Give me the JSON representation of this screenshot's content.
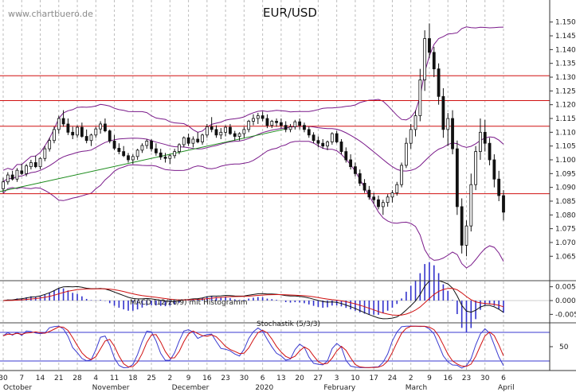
{
  "header": {
    "site": "www.chartbuero.de"
  },
  "chart_data": [
    {
      "type": "candlestick",
      "title": "EUR/USD",
      "ylim": [
        1.057,
        1.158
      ],
      "y_ticks": [
        "1.065",
        "1.070",
        "1.075",
        "1.080",
        "1.085",
        "1.090",
        "1.095",
        "1.100",
        "1.105",
        "1.110",
        "1.115",
        "1.120",
        "1.125",
        "1.130",
        "1.135",
        "1.140",
        "1.145",
        "1.150"
      ],
      "x_day_ticks": [
        "30",
        "7",
        "14",
        "21",
        "28",
        "4",
        "11",
        "18",
        "25",
        "2",
        "9",
        "16",
        "23",
        "30",
        "6",
        "13",
        "20",
        "27",
        "3",
        "10",
        "17",
        "24",
        "2",
        "9",
        "16",
        "23",
        "30",
        "6"
      ],
      "x_month_labels": [
        "October",
        "November",
        "December",
        "2020",
        "February",
        "March",
        "April"
      ],
      "horizontal_levels": [
        1.0877,
        1.1122,
        1.1215,
        1.1305
      ],
      "trendline": {
        "from": 1.0885,
        "to": 1.1112,
        "color": "#1a8a1a"
      },
      "candles": [
        [
          1.0895,
          1.0935,
          1.088,
          1.092
        ],
        [
          1.092,
          1.0955,
          1.091,
          1.0945
        ],
        [
          1.0945,
          1.096,
          1.0925,
          1.093
        ],
        [
          1.093,
          1.097,
          1.092,
          1.0962
        ],
        [
          1.096,
          1.0985,
          1.0945,
          1.095
        ],
        [
          1.095,
          1.0985,
          1.094,
          1.0978
        ],
        [
          1.0975,
          1.1,
          1.0965,
          1.099
        ],
        [
          1.099,
          1.1015,
          1.097,
          1.0975
        ],
        [
          1.0975,
          1.101,
          1.0965,
          1.1005
        ],
        [
          1.1005,
          1.105,
          1.0995,
          1.104
        ],
        [
          1.104,
          1.108,
          1.103,
          1.107
        ],
        [
          1.107,
          1.112,
          1.106,
          1.111
        ],
        [
          1.111,
          1.116,
          1.1095,
          1.115
        ],
        [
          1.115,
          1.118,
          1.112,
          1.113
        ],
        [
          1.113,
          1.115,
          1.109,
          1.11
        ],
        [
          1.11,
          1.112,
          1.1075,
          1.109
        ],
        [
          1.109,
          1.1125,
          1.108,
          1.1118
        ],
        [
          1.1118,
          1.1135,
          1.108,
          1.1085
        ],
        [
          1.1085,
          1.111,
          1.106,
          1.107
        ],
        [
          1.107,
          1.1095,
          1.105,
          1.109
        ],
        [
          1.109,
          1.112,
          1.108,
          1.1112
        ],
        [
          1.1112,
          1.114,
          1.1095,
          1.113
        ],
        [
          1.113,
          1.115,
          1.11,
          1.1105
        ],
        [
          1.1105,
          1.111,
          1.106,
          1.1068
        ],
        [
          1.1068,
          1.109,
          1.1035,
          1.1042
        ],
        [
          1.1042,
          1.106,
          1.102,
          1.103
        ],
        [
          1.103,
          1.105,
          1.101,
          1.1015
        ],
        [
          1.1015,
          1.1025,
          1.099,
          1.1
        ],
        [
          1.1,
          1.102,
          1.0985,
          1.1012
        ],
        [
          1.1012,
          1.104,
          1.1,
          1.1035
        ],
        [
          1.1035,
          1.106,
          1.1025,
          1.1052
        ],
        [
          1.1052,
          1.1075,
          1.104,
          1.1068
        ],
        [
          1.1068,
          1.1075,
          1.103,
          1.104
        ],
        [
          1.104,
          1.106,
          1.1015,
          1.1025
        ],
        [
          1.1025,
          1.104,
          1.1,
          1.101
        ],
        [
          1.101,
          1.1025,
          1.099,
          1.1005
        ],
        [
          1.1005,
          1.102,
          1.0985,
          1.1015
        ],
        [
          1.1015,
          1.104,
          1.1005,
          1.103
        ],
        [
          1.103,
          1.106,
          1.102,
          1.1055
        ],
        [
          1.1055,
          1.1085,
          1.1045,
          1.108
        ],
        [
          1.108,
          1.1095,
          1.105,
          1.106
        ],
        [
          1.106,
          1.1085,
          1.1045,
          1.1075
        ],
        [
          1.1075,
          1.11,
          1.106,
          1.1065
        ],
        [
          1.1065,
          1.1095,
          1.1055,
          1.109
        ],
        [
          1.109,
          1.113,
          1.108,
          1.112
        ],
        [
          1.112,
          1.1155,
          1.11,
          1.111
        ],
        [
          1.111,
          1.1125,
          1.108,
          1.109
        ],
        [
          1.109,
          1.1115,
          1.1075,
          1.11
        ],
        [
          1.11,
          1.1125,
          1.1085,
          1.1118
        ],
        [
          1.1118,
          1.113,
          1.109,
          1.1095
        ],
        [
          1.1095,
          1.1105,
          1.107,
          1.1085
        ],
        [
          1.1085,
          1.11,
          1.107,
          1.1095
        ],
        [
          1.1095,
          1.112,
          1.108,
          1.111
        ],
        [
          1.111,
          1.1145,
          1.11,
          1.114
        ],
        [
          1.114,
          1.1165,
          1.1125,
          1.115
        ],
        [
          1.115,
          1.117,
          1.113,
          1.116
        ],
        [
          1.116,
          1.1175,
          1.114,
          1.115
        ],
        [
          1.115,
          1.1165,
          1.1115,
          1.1125
        ],
        [
          1.1125,
          1.1145,
          1.1115,
          1.114
        ],
        [
          1.114,
          1.115,
          1.112,
          1.1135
        ],
        [
          1.1135,
          1.115,
          1.1115,
          1.1125
        ],
        [
          1.1125,
          1.114,
          1.11,
          1.111
        ],
        [
          1.111,
          1.113,
          1.11,
          1.112
        ],
        [
          1.112,
          1.1145,
          1.111,
          1.1138
        ],
        [
          1.1138,
          1.115,
          1.111,
          1.1125
        ],
        [
          1.1125,
          1.1135,
          1.11,
          1.111
        ],
        [
          1.111,
          1.112,
          1.108,
          1.109
        ],
        [
          1.109,
          1.11,
          1.106,
          1.107
        ],
        [
          1.107,
          1.1085,
          1.1045,
          1.106
        ],
        [
          1.106,
          1.1075,
          1.104,
          1.105
        ],
        [
          1.105,
          1.107,
          1.1035,
          1.1065
        ],
        [
          1.1065,
          1.11,
          1.1055,
          1.1095
        ],
        [
          1.1095,
          1.1105,
          1.106,
          1.1065
        ],
        [
          1.1065,
          1.1075,
          1.102,
          1.103
        ],
        [
          1.103,
          1.1045,
          1.099,
          1.1
        ],
        [
          1.1,
          1.102,
          1.0965,
          1.0975
        ],
        [
          1.0975,
          1.099,
          1.094,
          1.095
        ],
        [
          1.095,
          1.0965,
          1.0905,
          1.0915
        ],
        [
          1.0915,
          1.093,
          1.088,
          1.089
        ],
        [
          1.089,
          1.0905,
          1.0855,
          1.0865
        ],
        [
          1.0865,
          1.088,
          1.084,
          1.0855
        ],
        [
          1.0855,
          1.087,
          1.082,
          1.083
        ],
        [
          1.083,
          1.0855,
          1.08,
          1.0845
        ],
        [
          1.0845,
          1.0875,
          1.083,
          1.0865
        ],
        [
          1.0865,
          1.089,
          1.0845,
          1.088
        ],
        [
          1.088,
          1.092,
          1.087,
          1.091
        ],
        [
          1.091,
          1.099,
          1.09,
          1.098
        ],
        [
          1.098,
          1.108,
          1.097,
          1.106
        ],
        [
          1.106,
          1.113,
          1.104,
          1.111
        ],
        [
          1.111,
          1.118,
          1.1085,
          1.116
        ],
        [
          1.116,
          1.133,
          1.114,
          1.129
        ],
        [
          1.129,
          1.147,
          1.125,
          1.144
        ],
        [
          1.144,
          1.1495,
          1.137,
          1.139
        ],
        [
          1.139,
          1.141,
          1.13,
          1.133
        ],
        [
          1.133,
          1.135,
          1.12,
          1.123
        ],
        [
          1.123,
          1.126,
          1.108,
          1.111
        ],
        [
          1.111,
          1.117,
          1.105,
          1.115
        ],
        [
          1.115,
          1.118,
          1.102,
          1.104
        ],
        [
          1.104,
          1.107,
          1.08,
          1.083
        ],
        [
          1.083,
          1.086,
          1.066,
          1.069
        ],
        [
          1.069,
          1.078,
          1.065,
          1.076
        ],
        [
          1.076,
          1.095,
          1.074,
          1.091
        ],
        [
          1.091,
          1.105,
          1.089,
          1.103
        ],
        [
          1.103,
          1.115,
          1.1,
          1.11
        ],
        [
          1.11,
          1.1145,
          1.103,
          1.106
        ],
        [
          1.106,
          1.108,
          1.098,
          1.1
        ],
        [
          1.1,
          1.102,
          1.09,
          1.093
        ],
        [
          1.093,
          1.096,
          1.085,
          1.087
        ],
        [
          1.087,
          1.089,
          1.078,
          1.081
        ]
      ],
      "bollinger_color": "#7a1a8a"
    },
    {
      "type": "macd_histogram",
      "label": "MACD (12/26/9) mit Histogramm",
      "ylim": [
        -0.0072,
        0.0072
      ],
      "y_ticks": [
        "0.005",
        "0.000",
        "-0.005"
      ],
      "macd_color": "#111111",
      "signal_color": "#d01010",
      "histogram_color": "#3333cc"
    },
    {
      "type": "line",
      "label": "Stochastik (5/3/3)",
      "ylim": [
        0,
        100
      ],
      "y_ticks": [
        "50"
      ],
      "levels": [
        20,
        80
      ],
      "k_color": "#3a3ad0",
      "d_color": "#d01010"
    }
  ]
}
